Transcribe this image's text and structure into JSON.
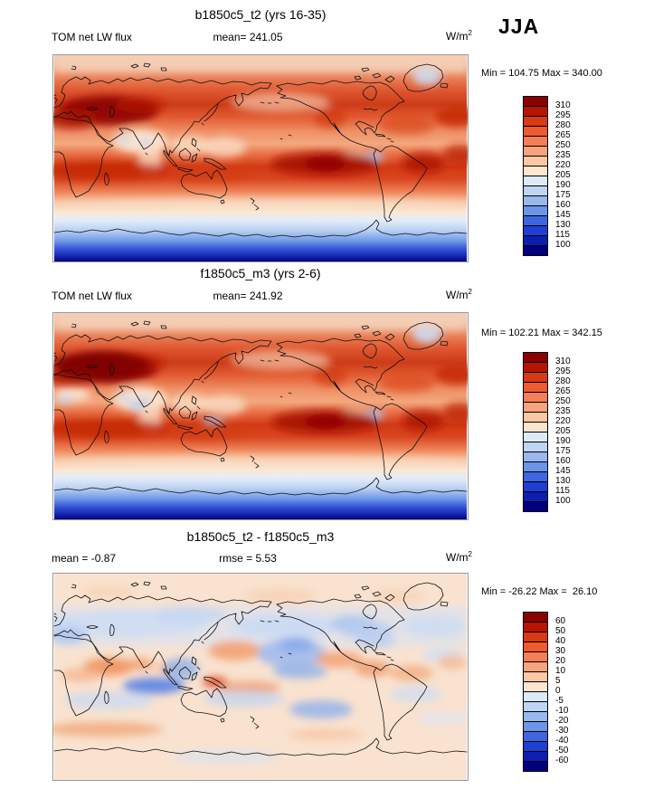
{
  "season": "JJA",
  "panels": [
    {
      "title": "b1850c5_t2 (yrs 16-35)",
      "left_label": "TOM net LW flux",
      "center_label": "mean= 241.05",
      "units_label": "W/m",
      "units_exp": "2",
      "stats": "Min = 104.75 Max = 340.00",
      "colorbar_ticks": [
        "310",
        "295",
        "280",
        "265",
        "250",
        "235",
        "220",
        "205",
        "190",
        "175",
        "160",
        "145",
        "130",
        "115",
        "100"
      ]
    },
    {
      "title": "f1850c5_m3 (yrs 2-6)",
      "left_label": "TOM net LW flux",
      "center_label": "mean= 241.92",
      "units_label": "W/m",
      "units_exp": "2",
      "stats": "Min = 102.21 Max = 342.15",
      "colorbar_ticks": [
        "310",
        "295",
        "280",
        "265",
        "250",
        "235",
        "220",
        "205",
        "190",
        "175",
        "160",
        "145",
        "130",
        "115",
        "100"
      ]
    },
    {
      "title": "b1850c5_t2 - f1850c5_m3",
      "left_label": "mean =  -0.87",
      "center_label": "rmse =   5.53",
      "units_label": "W/m",
      "units_exp": "2",
      "stats": "Min = -26.22 Max =  26.10",
      "colorbar_ticks": [
        "60",
        "50",
        "40",
        "30",
        "20",
        "10",
        "5",
        "0",
        "-5",
        "-10",
        "-20",
        "-30",
        "-40",
        "-50",
        "-60"
      ]
    }
  ],
  "palette": {
    "segments": [
      "#8B0000",
      "#B81400",
      "#D73A14",
      "#EF5B2E",
      "#F47E55",
      "#F7A37D",
      "#FBC7A5",
      "#FDE5CE",
      "#DCE9F8",
      "#BED5F4",
      "#98B8EF",
      "#6C94E8",
      "#3F66DF",
      "#1F3FD3",
      "#0E1DB2",
      "#00007E"
    ],
    "land_outline": "#111111",
    "frame": "#999999"
  },
  "chart_data": [
    {
      "type": "heatmap",
      "title": "b1850c5_t2 (yrs 16-35)",
      "variable": "TOM net LW flux",
      "season": "JJA",
      "units": "W/m2",
      "mean": 241.05,
      "min": 104.75,
      "max": 340.0,
      "levels": [
        100,
        115,
        130,
        145,
        160,
        175,
        190,
        205,
        220,
        235,
        250,
        265,
        280,
        295,
        310
      ],
      "projection": "global lat-lon map, longitudes 0-360E, colorbar blue(low)-red(high), legend right"
    },
    {
      "type": "heatmap",
      "title": "f1850c5_m3 (yrs 2-6)",
      "variable": "TOM net LW flux",
      "season": "JJA",
      "units": "W/m2",
      "mean": 241.92,
      "min": 102.21,
      "max": 342.15,
      "levels": [
        100,
        115,
        130,
        145,
        160,
        175,
        190,
        205,
        220,
        235,
        250,
        265,
        280,
        295,
        310
      ],
      "projection": "global lat-lon map, longitudes 0-360E, colorbar blue(low)-red(high), legend right"
    },
    {
      "type": "heatmap",
      "title": "b1850c5_t2 - f1850c5_m3",
      "variable": "TOM net LW flux difference",
      "season": "JJA",
      "units": "W/m2",
      "mean": -0.87,
      "rmse": 5.53,
      "min": -26.22,
      "max": 26.1,
      "levels": [
        -60,
        -50,
        -40,
        -30,
        -20,
        -10,
        -5,
        0,
        5,
        10,
        20,
        30,
        40,
        50,
        60
      ],
      "projection": "global lat-lon map, longitudes 0-360E, diverging blue-red colorbar, legend right"
    }
  ]
}
